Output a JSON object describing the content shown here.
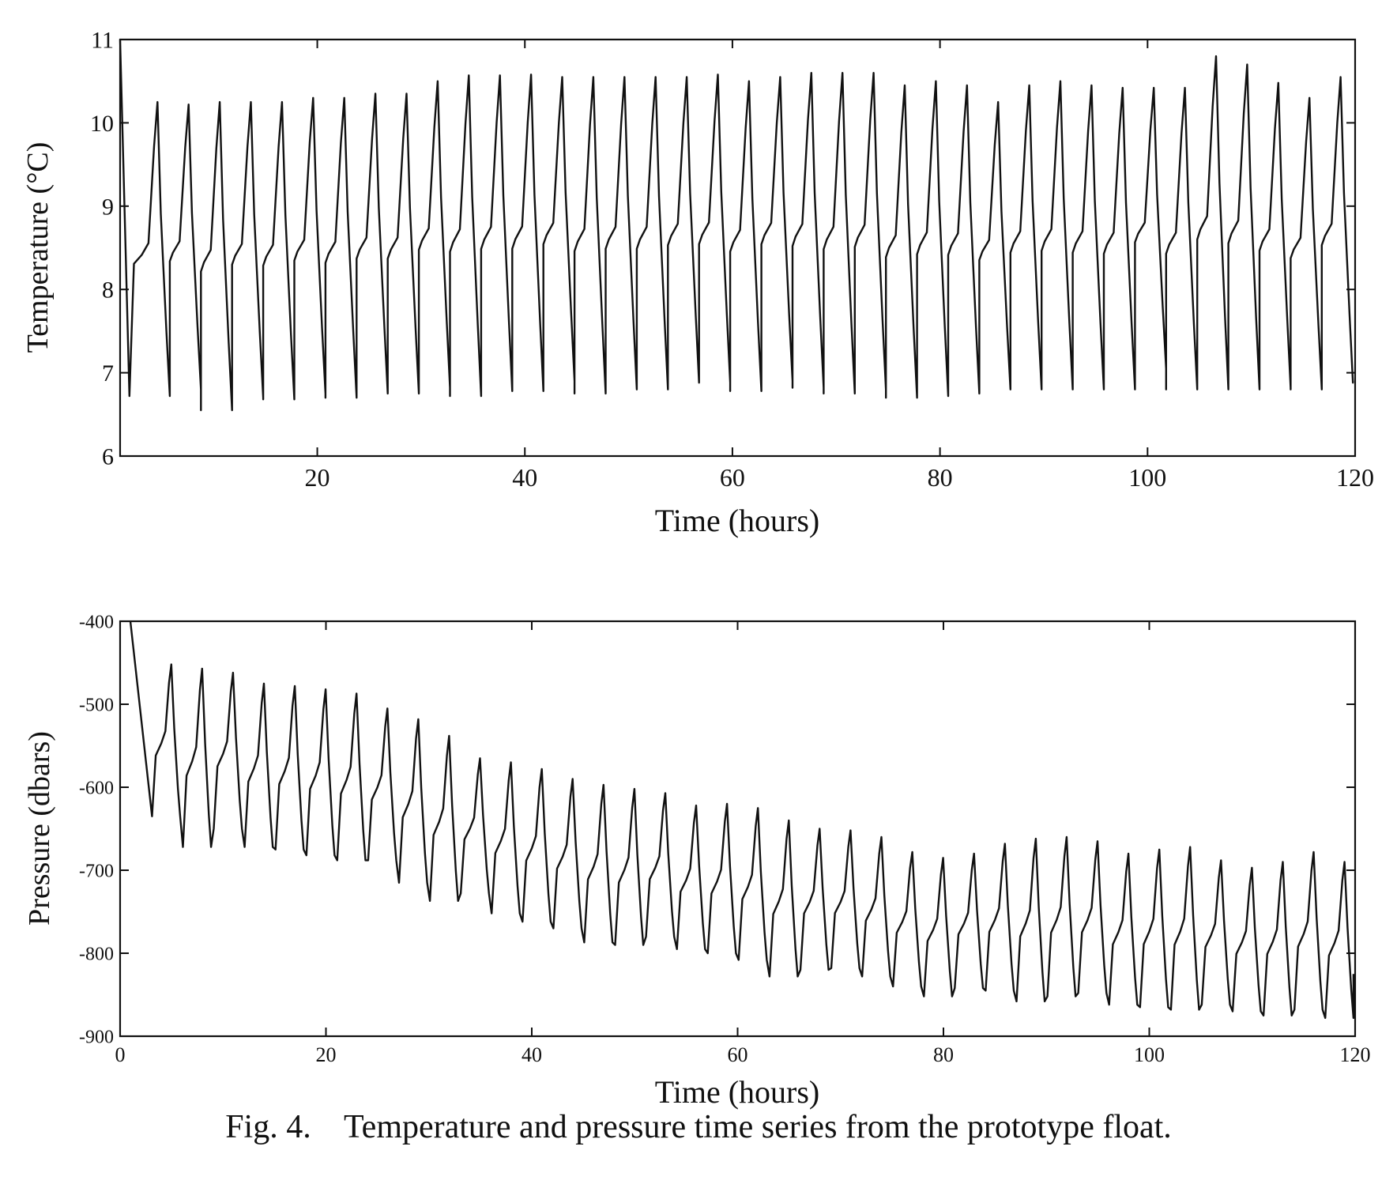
{
  "caption": "Fig. 4.    Temperature and pressure time series from the prototype float.",
  "chart_data": [
    {
      "type": "line",
      "xlabel": "Time (hours)",
      "ylabel": "Temperature (°C)",
      "xlim": [
        1,
        120
      ],
      "ylim": [
        6,
        11
      ],
      "xticks": [
        20,
        40,
        60,
        80,
        100,
        120
      ],
      "xtick_labels": [
        "20",
        "40",
        "60",
        "80",
        "100",
        "120"
      ],
      "yticks": [
        6,
        7,
        8,
        9,
        10,
        11
      ],
      "ytick_labels": [
        "6",
        "7",
        "8",
        "9",
        "10",
        "11"
      ],
      "grid": false,
      "line_color": "#111111",
      "cycle": {
        "shape": [
          [
            0,
            0.0
          ],
          [
            0.08,
            0.45
          ],
          [
            0.22,
            0.48
          ],
          [
            0.34,
            0.52
          ],
          [
            0.44,
            0.85
          ],
          [
            0.5,
            1.0
          ],
          [
            0.56,
            0.62
          ],
          [
            0.66,
            0.22
          ],
          [
            0.72,
            0.0
          ]
        ],
        "peaks": [
          [
            1,
            11.0
          ],
          [
            4.6,
            10.25
          ],
          [
            7.6,
            10.22
          ],
          [
            10.6,
            10.25
          ],
          [
            13.6,
            10.25
          ],
          [
            16.6,
            10.25
          ],
          [
            19.6,
            10.3
          ],
          [
            22.6,
            10.3
          ],
          [
            25.6,
            10.35
          ],
          [
            28.6,
            10.35
          ],
          [
            31.6,
            10.5
          ],
          [
            34.6,
            10.57
          ],
          [
            37.6,
            10.57
          ],
          [
            40.6,
            10.58
          ],
          [
            43.6,
            10.55
          ],
          [
            46.6,
            10.55
          ],
          [
            49.6,
            10.55
          ],
          [
            52.6,
            10.55
          ],
          [
            55.6,
            10.55
          ],
          [
            58.6,
            10.58
          ],
          [
            61.6,
            10.5
          ],
          [
            64.6,
            10.55
          ],
          [
            67.6,
            10.6
          ],
          [
            70.6,
            10.6
          ],
          [
            73.6,
            10.6
          ],
          [
            76.6,
            10.45
          ],
          [
            79.6,
            10.5
          ],
          [
            82.6,
            10.45
          ],
          [
            85.6,
            10.25
          ],
          [
            88.6,
            10.45
          ],
          [
            91.6,
            10.5
          ],
          [
            94.6,
            10.45
          ],
          [
            97.6,
            10.42
          ],
          [
            100.6,
            10.42
          ],
          [
            103.6,
            10.42
          ],
          [
            106.6,
            10.8
          ],
          [
            109.6,
            10.7
          ],
          [
            112.6,
            10.48
          ],
          [
            115.6,
            10.3
          ],
          [
            118.6,
            10.55
          ]
        ],
        "troughs": [
          [
            1.9,
            6.72
          ],
          [
            4.9,
            6.8
          ],
          [
            7.9,
            6.55
          ],
          [
            10.9,
            6.7
          ],
          [
            13.9,
            6.68
          ],
          [
            16.9,
            6.75
          ],
          [
            19.9,
            6.7
          ],
          [
            22.9,
            6.75
          ],
          [
            25.9,
            6.75
          ],
          [
            28.9,
            6.82
          ],
          [
            31.9,
            6.72
          ],
          [
            34.9,
            6.78
          ],
          [
            37.9,
            6.78
          ],
          [
            40.9,
            6.9
          ],
          [
            43.9,
            6.75
          ],
          [
            46.9,
            6.8
          ],
          [
            49.9,
            6.8
          ],
          [
            52.9,
            6.88
          ],
          [
            55.9,
            6.88
          ],
          [
            58.9,
            6.78
          ],
          [
            61.9,
            6.9
          ],
          [
            64.9,
            6.82
          ],
          [
            67.9,
            6.75
          ],
          [
            70.9,
            6.8
          ],
          [
            73.9,
            6.7
          ],
          [
            76.9,
            6.72
          ],
          [
            79.9,
            6.75
          ],
          [
            82.9,
            6.8
          ],
          [
            85.9,
            6.8
          ],
          [
            88.9,
            6.8
          ],
          [
            91.9,
            6.8
          ],
          [
            94.9,
            6.8
          ],
          [
            97.9,
            7.05
          ],
          [
            100.9,
            6.8
          ],
          [
            103.9,
            6.8
          ],
          [
            106.9,
            6.8
          ],
          [
            109.9,
            6.82
          ],
          [
            112.9,
            6.8
          ],
          [
            115.9,
            6.88
          ],
          [
            118.9,
            6.9
          ],
          [
            120,
            7.0
          ]
        ]
      }
    },
    {
      "type": "line",
      "xlabel": "Time (hours)",
      "ylabel": "Pressure (dbars)",
      "xlim": [
        0,
        120
      ],
      "ylim": [
        -900,
        -400
      ],
      "xticks": [
        0,
        20,
        40,
        60,
        80,
        100,
        120
      ],
      "xtick_labels": [
        "0",
        "20",
        "40",
        "60",
        "80",
        "100",
        "120"
      ],
      "yticks": [
        -900,
        -800,
        -700,
        -600,
        -500,
        -400
      ],
      "ytick_labels": [
        "-900",
        "-800",
        "-700",
        "-600",
        "-500",
        "-400"
      ],
      "grid": false,
      "line_color": "#111111",
      "cycle": {
        "shape": [
          [
            0,
            0.0
          ],
          [
            0.1,
            0.4
          ],
          [
            0.25,
            0.48
          ],
          [
            0.36,
            0.56
          ],
          [
            0.46,
            0.88
          ],
          [
            0.52,
            1.0
          ],
          [
            0.6,
            0.58
          ],
          [
            0.7,
            0.18
          ],
          [
            0.76,
            0.0
          ]
        ],
        "peaks": [
          [
            1,
            -398
          ],
          [
            4.9,
            -452
          ],
          [
            7.9,
            -457
          ],
          [
            10.9,
            -462
          ],
          [
            13.9,
            -475
          ],
          [
            16.9,
            -478
          ],
          [
            19.9,
            -482
          ],
          [
            22.9,
            -487
          ],
          [
            25.9,
            -505
          ],
          [
            28.9,
            -518
          ],
          [
            31.9,
            -538
          ],
          [
            34.9,
            -565
          ],
          [
            37.9,
            -570
          ],
          [
            40.9,
            -578
          ],
          [
            43.9,
            -590
          ],
          [
            46.9,
            -597
          ],
          [
            49.9,
            -602
          ],
          [
            52.9,
            -607
          ],
          [
            55.9,
            -622
          ],
          [
            58.9,
            -620
          ],
          [
            61.9,
            -625
          ],
          [
            64.9,
            -640
          ],
          [
            67.9,
            -650
          ],
          [
            70.9,
            -652
          ],
          [
            73.9,
            -660
          ],
          [
            76.9,
            -678
          ],
          [
            79.9,
            -685
          ],
          [
            82.9,
            -680
          ],
          [
            85.9,
            -668
          ],
          [
            88.9,
            -662
          ],
          [
            91.9,
            -660
          ],
          [
            94.9,
            -665
          ],
          [
            97.9,
            -680
          ],
          [
            100.9,
            -675
          ],
          [
            103.9,
            -672
          ],
          [
            106.9,
            -688
          ],
          [
            109.9,
            -697
          ],
          [
            112.9,
            -690
          ],
          [
            115.9,
            -678
          ],
          [
            118.9,
            -690
          ]
        ],
        "troughs": [
          [
            3.1,
            -635
          ],
          [
            6.1,
            -672
          ],
          [
            9.1,
            -650
          ],
          [
            12.1,
            -672
          ],
          [
            15.1,
            -675
          ],
          [
            18.1,
            -682
          ],
          [
            21.1,
            -688
          ],
          [
            24.1,
            -688
          ],
          [
            27.1,
            -715
          ],
          [
            30.1,
            -737
          ],
          [
            33.1,
            -728
          ],
          [
            36.1,
            -752
          ],
          [
            39.1,
            -762
          ],
          [
            42.1,
            -770
          ],
          [
            45.1,
            -787
          ],
          [
            48.1,
            -790
          ],
          [
            51.1,
            -780
          ],
          [
            54.1,
            -795
          ],
          [
            57.1,
            -800
          ],
          [
            60.1,
            -808
          ],
          [
            63.1,
            -828
          ],
          [
            66.1,
            -820
          ],
          [
            69.1,
            -818
          ],
          [
            72.1,
            -828
          ],
          [
            75.1,
            -840
          ],
          [
            78.1,
            -852
          ],
          [
            81.1,
            -842
          ],
          [
            84.1,
            -845
          ],
          [
            87.1,
            -858
          ],
          [
            90.1,
            -852
          ],
          [
            93.1,
            -848
          ],
          [
            96.1,
            -862
          ],
          [
            99.1,
            -865
          ],
          [
            102.1,
            -868
          ],
          [
            105.1,
            -862
          ],
          [
            108.1,
            -870
          ],
          [
            111.1,
            -875
          ],
          [
            114.1,
            -868
          ],
          [
            117.1,
            -878
          ],
          [
            119.4,
            -825
          ],
          [
            120,
            -900
          ]
        ]
      }
    }
  ]
}
